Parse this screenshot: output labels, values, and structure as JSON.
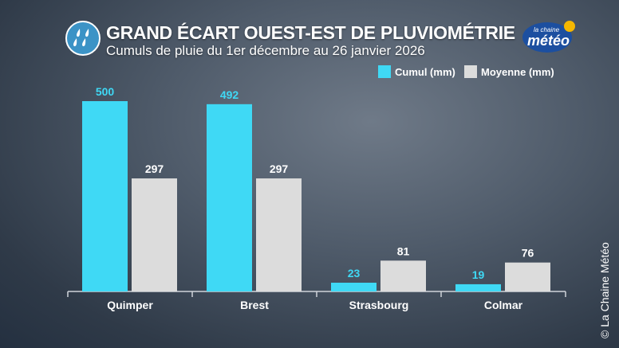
{
  "chart_data": {
    "type": "bar",
    "title": "GRAND ÉCART OUEST-EST DE PLUVIOMÉTRIE",
    "subtitle": "Cumuls de pluie du 1er décembre au 26 janvier 2026",
    "categories": [
      "Quimper",
      "Brest",
      "Strasbourg",
      "Colmar"
    ],
    "series": [
      {
        "name": "Cumul (mm)",
        "color": "#3fd9f5",
        "values": [
          500,
          492,
          23,
          19
        ]
      },
      {
        "name": "Moyenne (mm)",
        "color": "#dcdcdc",
        "values": [
          297,
          297,
          81,
          76
        ]
      }
    ],
    "ylim": [
      0,
      520
    ],
    "grid": false,
    "legend": "top-right"
  },
  "logo": {
    "line1": "la chaine",
    "line2": "météo"
  },
  "copyright": "© La Chaine Météo",
  "icon": "rain-drops-icon"
}
